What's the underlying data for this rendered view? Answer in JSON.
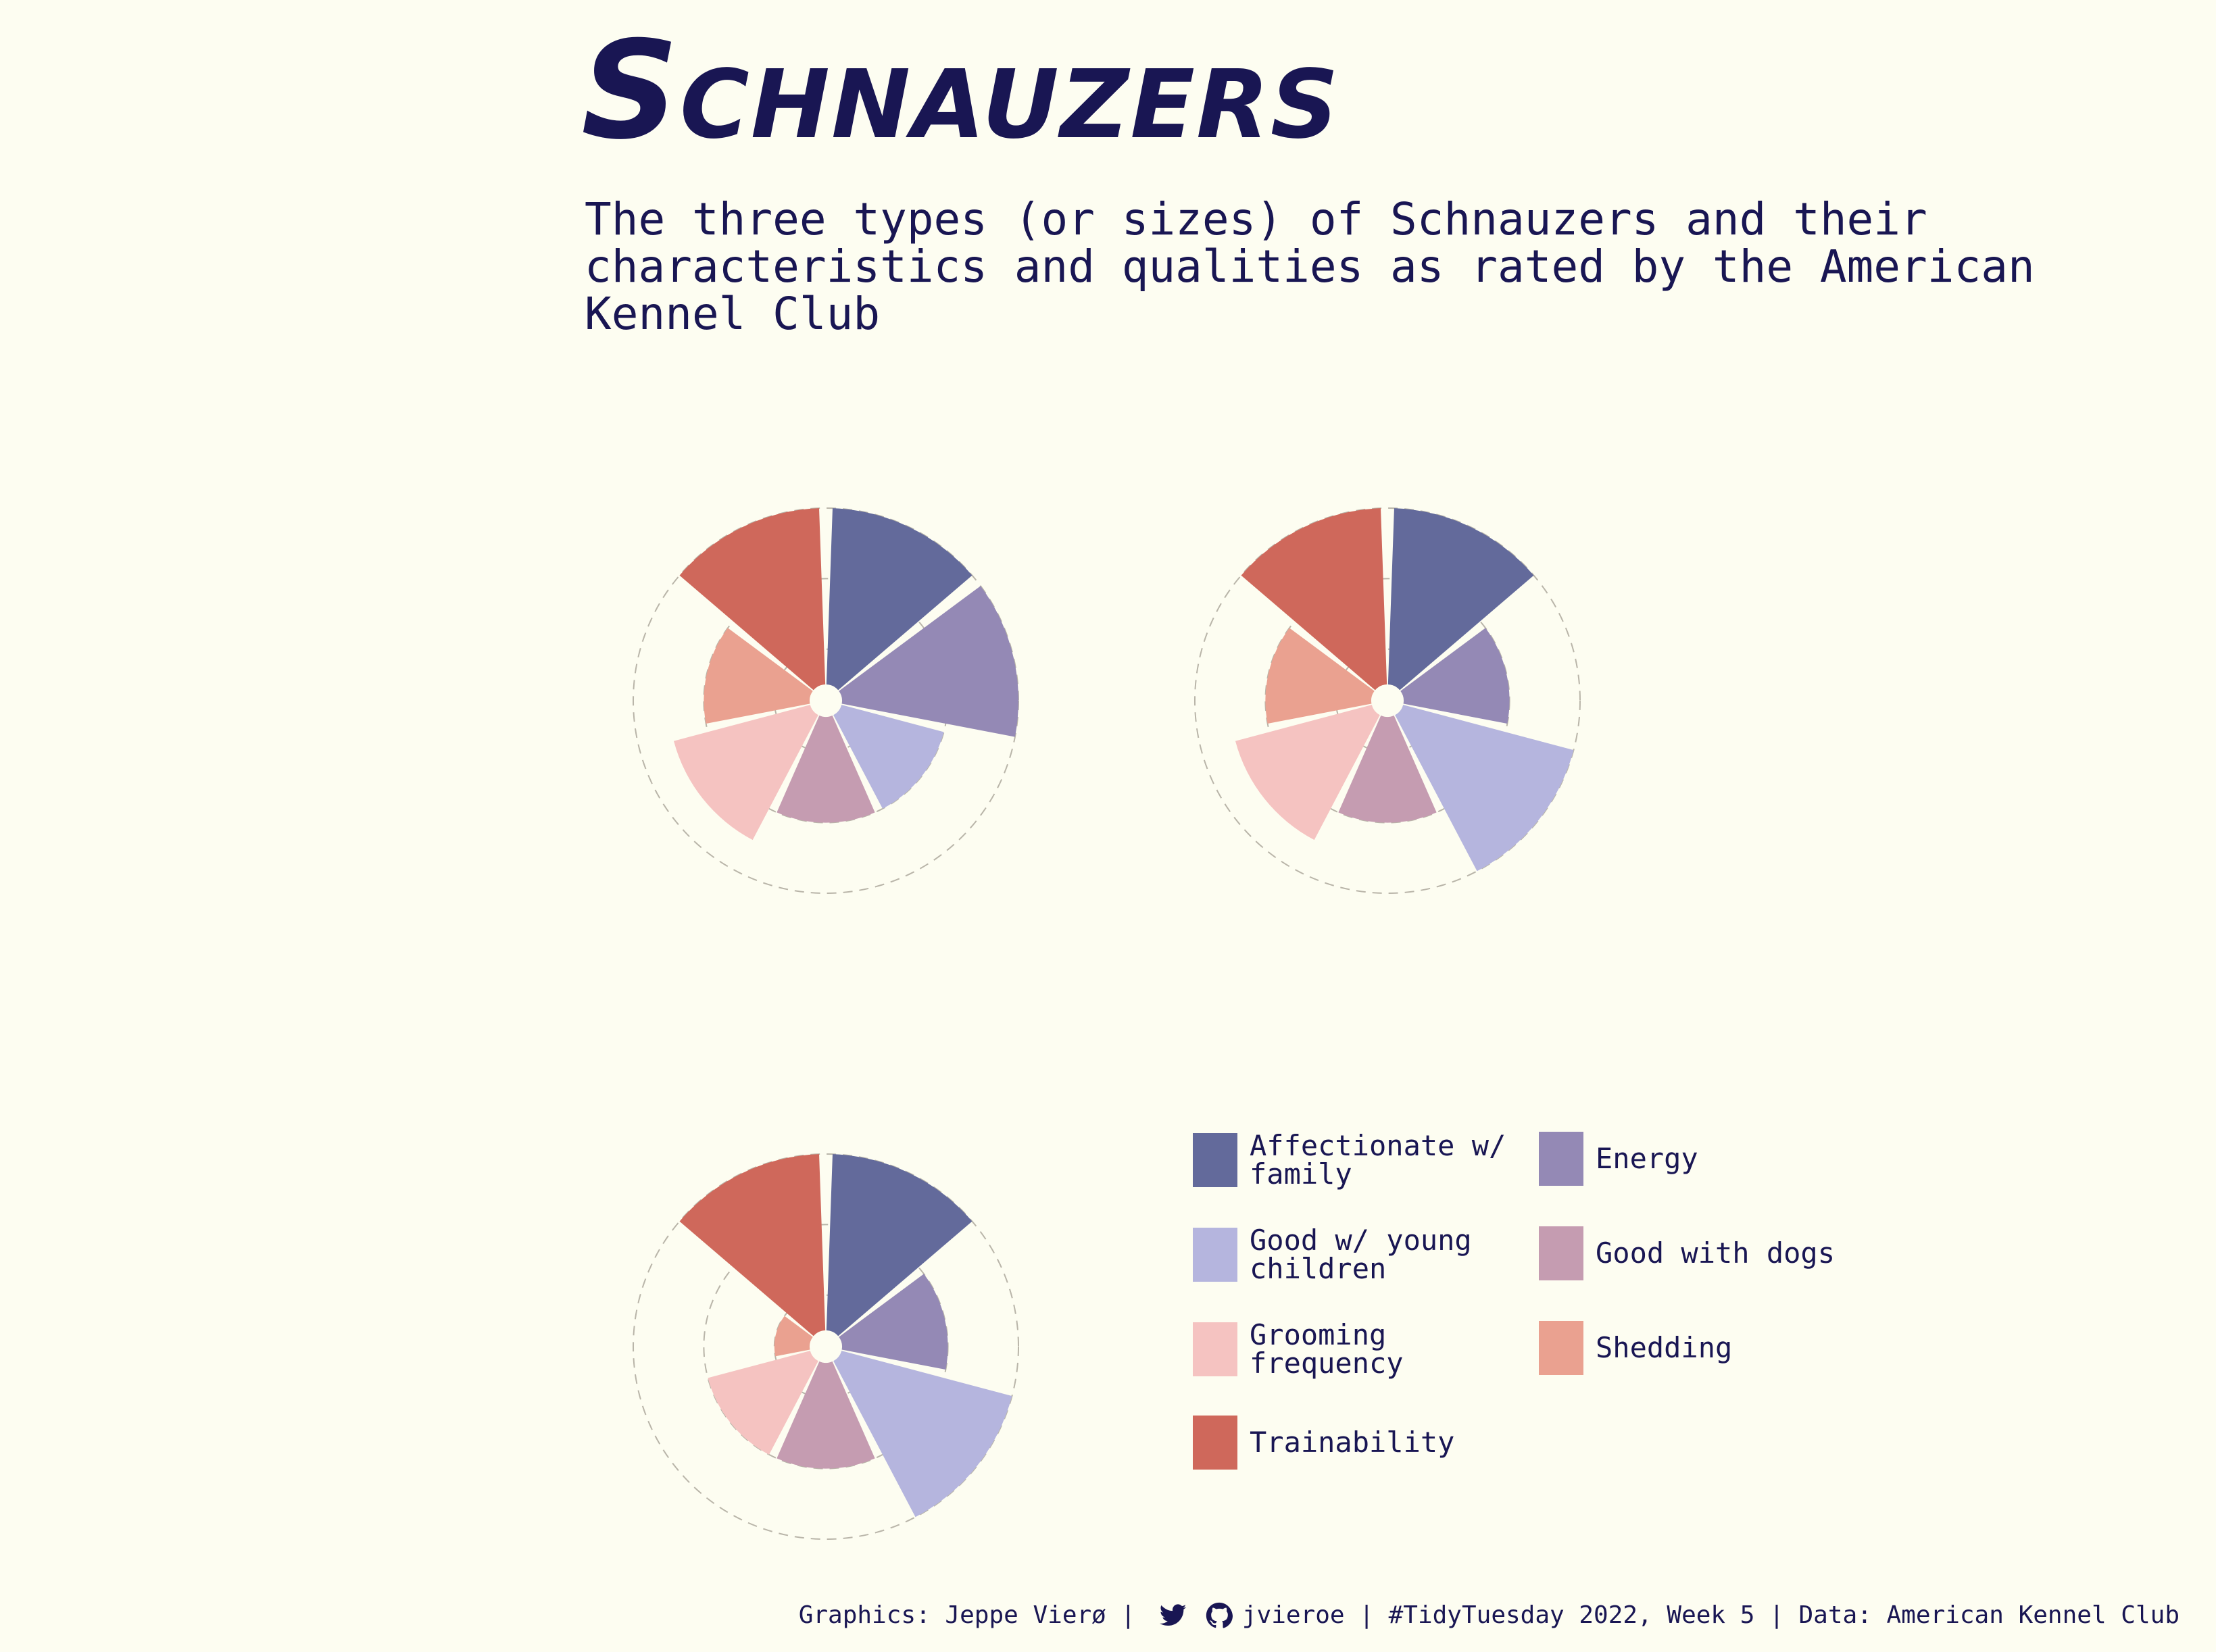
{
  "title": "Schnauzers",
  "subtitle": "The three types (or sizes) of Schnauzers and their characteristics and qualities as rated by the American Kennel Club",
  "legend": [
    {
      "label": "Affectionate w/\nfamily",
      "color": "#636a9b"
    },
    {
      "label": "Energy",
      "color": "#9489b5"
    },
    {
      "label": "Good w/ young\nchildren",
      "color": "#b5b5de"
    },
    {
      "label": "Good with dogs",
      "color": "#c59cb1"
    },
    {
      "label": "Grooming\nfrequency",
      "color": "#f5c3c1"
    },
    {
      "label": "Shedding",
      "color": "#eaa190"
    },
    {
      "label": "Trainability",
      "color": "#cf685b"
    }
  ],
  "caption": {
    "prefix": "Graphics: Jeppe Vierø | ",
    "twitter_icon": "twitter-icon",
    "github_icon": "github-icon",
    "handle": "jvieroe",
    "suffix": " | #TidyTuesday 2022, Week 5 | Data: American Kennel Club"
  },
  "chart_data": [
    {
      "type": "polar-bar",
      "title": "",
      "categories": [
        "Affectionate w/ family",
        "Energy",
        "Good w/ young children",
        "Good with dogs",
        "Grooming frequency",
        "Shedding",
        "Trainability"
      ],
      "values": [
        5,
        5,
        3,
        3,
        4,
        3,
        5
      ],
      "rlim": [
        0,
        5
      ],
      "gridlines": [
        1,
        3,
        5
      ]
    },
    {
      "type": "polar-bar",
      "title": "",
      "categories": [
        "Affectionate w/ family",
        "Energy",
        "Good w/ young children",
        "Good with dogs",
        "Grooming frequency",
        "Shedding",
        "Trainability"
      ],
      "values": [
        5,
        3,
        5,
        3,
        4,
        3,
        5
      ],
      "rlim": [
        0,
        5
      ],
      "gridlines": [
        1,
        3,
        5
      ]
    },
    {
      "type": "polar-bar",
      "title": "",
      "categories": [
        "Affectionate w/ family",
        "Energy",
        "Good w/ young children",
        "Good with dogs",
        "Grooming frequency",
        "Shedding",
        "Trainability"
      ],
      "values": [
        5,
        3,
        5,
        3,
        3,
        1,
        5
      ],
      "rlim": [
        0,
        5
      ],
      "gridlines": [
        1,
        3,
        5
      ]
    }
  ]
}
